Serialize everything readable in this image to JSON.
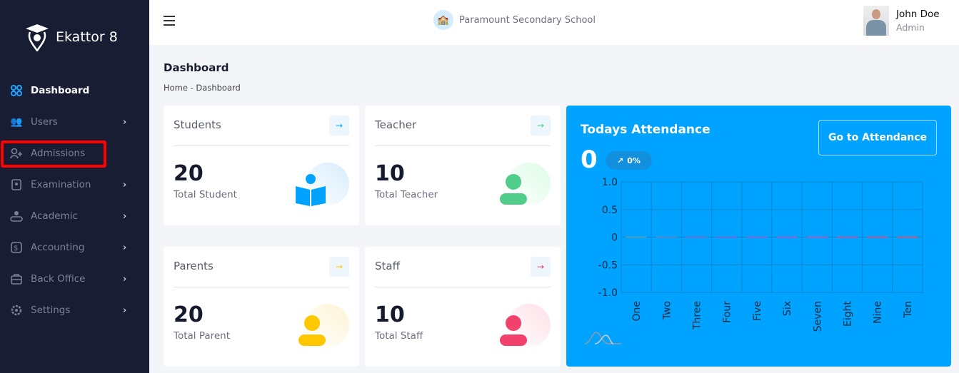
{
  "sidebar": {
    "brand": "Ekattor 8",
    "items": [
      {
        "label": "Dashboard",
        "icon": "grid-icon",
        "active": true,
        "chevron": false
      },
      {
        "label": "Users",
        "icon": "users-icon",
        "chevron": true
      },
      {
        "label": "Admissions",
        "icon": "user-plus-icon",
        "chevron": false
      },
      {
        "label": "Examination",
        "icon": "exam-icon",
        "chevron": true
      },
      {
        "label": "Academic",
        "icon": "academic-icon",
        "chevron": true
      },
      {
        "label": "Accounting",
        "icon": "accounting-icon",
        "chevron": true
      },
      {
        "label": "Back Office",
        "icon": "briefcase-icon",
        "chevron": true
      },
      {
        "label": "Settings",
        "icon": "gear-icon",
        "chevron": true
      }
    ],
    "chevron": "›"
  },
  "header": {
    "school": "Paramount Secondary School",
    "user_name": "John Doe",
    "user_role": "Admin"
  },
  "page": {
    "title": "Dashboard",
    "breadcrumb": "Home - Dashboard"
  },
  "cards": [
    {
      "title": "Students",
      "value": "20",
      "label": "Total Student",
      "color": "#00a3ff",
      "bg": "#d6ecfc",
      "arrow": "→"
    },
    {
      "title": "Teacher",
      "value": "10",
      "label": "Total Teacher",
      "color": "#50cd89",
      "bg": "#dcfbe7",
      "arrow": "→"
    },
    {
      "title": "Parents",
      "value": "20",
      "label": "Total Parent",
      "color": "#ffc700",
      "bg": "#fdf3d4",
      "arrow": "→"
    },
    {
      "title": "Staff",
      "value": "10",
      "label": "Total Staff",
      "color": "#f1416c",
      "bg": "#fde0e7",
      "arrow": "→"
    }
  ],
  "attendance": {
    "title": "Todays Attendance",
    "count": "0",
    "change": "0%",
    "button": "Go to Attendance",
    "bg": "#00a3ff"
  },
  "chart_data": {
    "type": "bar",
    "categories": [
      "One",
      "Two",
      "Three",
      "Four",
      "Five",
      "Six",
      "Seven",
      "Eight",
      "Nine",
      "Ten"
    ],
    "values": [
      0,
      0,
      0,
      0,
      0,
      0,
      0,
      0,
      0,
      0
    ],
    "ylim": [
      -1,
      1
    ],
    "yticks": [
      "1.0",
      "0.5",
      "0",
      "-0.5",
      "-1.0"
    ],
    "grid": true,
    "colors": [
      "#4b9bb7",
      "#5a86c9",
      "#6a6fd4",
      "#7466d6",
      "#8264d6",
      "#9161d4",
      "#a15ec6",
      "#b05aa8",
      "#bd5693",
      "#c55a7e"
    ]
  }
}
